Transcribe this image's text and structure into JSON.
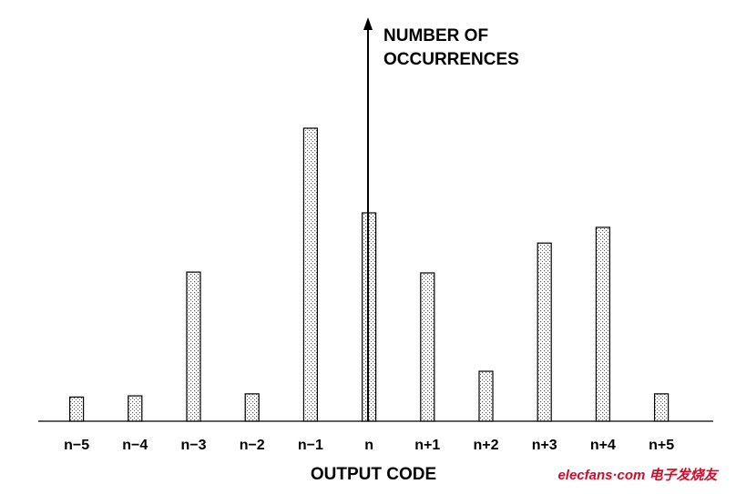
{
  "chart_data": {
    "type": "bar",
    "ylabel": [
      "NUMBER OF",
      "OCCURRENCES"
    ],
    "xlabel": "OUTPUT CODE",
    "categories": [
      "n−5",
      "n−4",
      "n−3",
      "n−2",
      "n−1",
      "n",
      "n+1",
      "n+2",
      "n+3",
      "n+4",
      "n+5"
    ],
    "values": [
      6,
      6.3,
      37,
      6.8,
      72.7,
      51.7,
      36.8,
      12.4,
      44.2,
      48.1,
      6.8
    ],
    "ylim": [
      0,
      100
    ],
    "color": "#000000"
  },
  "watermark": "elecfans·com 电子发烧友"
}
